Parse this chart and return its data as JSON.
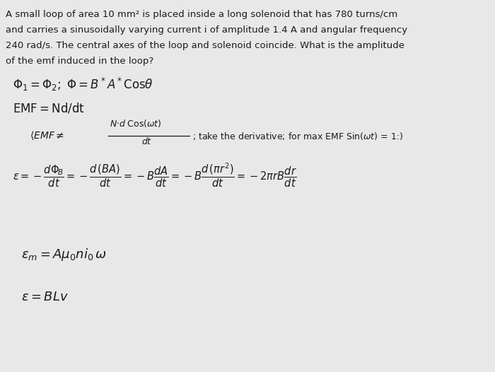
{
  "bg_color": "#e8e8e8",
  "text_color": "#1a1a1a",
  "fig_width": 7.0,
  "fig_height": 5.26,
  "dpi": 100,
  "problem_text_lines": [
    "A small loop of area 10 mm² is placed inside a long solenoid that has 780 turns/cm",
    "and carries a sinusoidally varying current i of amplitude 1.4 A and angular frequency",
    "240 rad/s. The central axes of the loop and solenoid coincide. What is the amplitude",
    "of the emf induced in the loop?"
  ],
  "problem_fontsize": 9.5,
  "eq1": "$\\Phi_1 = \\Phi_2;\\; \\Phi = B^*A^*\\mathrm{Cos}\\theta$",
  "eq1_fontsize": 12,
  "eq2": "$\\mathrm{EMF} = \\mathrm{Nd/dt}$",
  "eq2_fontsize": 12,
  "eq3_left": "$\\langle \\mathit{EMF} \\neq$",
  "eq3_frac_top": "$N{\\cdot}d\\,\\mathrm{Cos}(\\omega t)$",
  "eq3_frac_bot": "$dt$",
  "eq3_right": "; take the derivative; for max EMF Sin($\\omega t$) = 1:)",
  "eq3_fontsize": 10,
  "eq4": "$\\varepsilon = -\\dfrac{d\\Phi_{\\!B}}{dt} = -\\dfrac{d\\,(BA)}{dt} = -B\\dfrac{dA}{dt} = -B\\dfrac{d\\,(\\pi r^2)}{dt} = -2\\pi r B\\dfrac{dr}{dt}$",
  "eq4_fontsize": 10.5,
  "eq5": "$\\varepsilon_m = A\\mu_0 n i_0\\,\\omega$",
  "eq5_fontsize": 13,
  "eq6": "$\\varepsilon = BLv$",
  "eq6_fontsize": 13
}
